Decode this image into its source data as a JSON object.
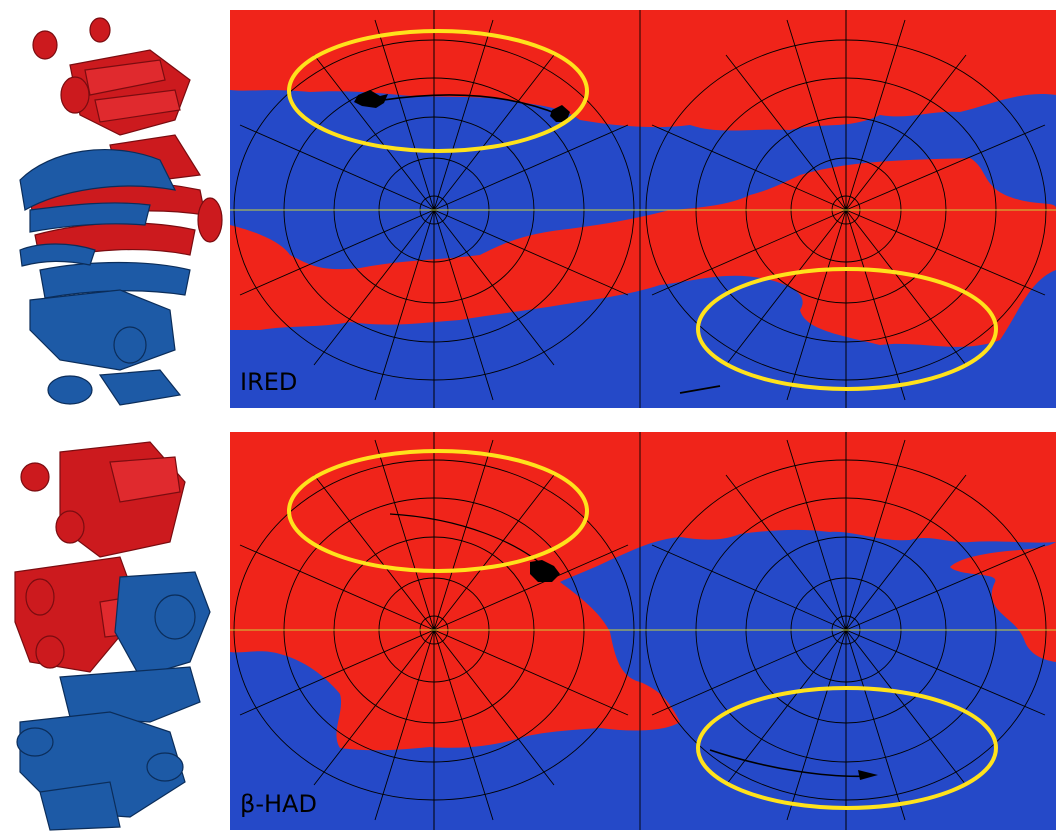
{
  "panels": {
    "top": {
      "label": "IRED"
    },
    "bottom": {
      "label": "β-HAD"
    }
  },
  "colors": {
    "domain_a": "#f0241a",
    "domain_b": "#2549c8",
    "highlight": "#ffe21c",
    "equator": "#c9d23a",
    "grid": "#000000",
    "ribbon_red": "#cc1a1e",
    "ribbon_blue": "#1d5aa6"
  }
}
